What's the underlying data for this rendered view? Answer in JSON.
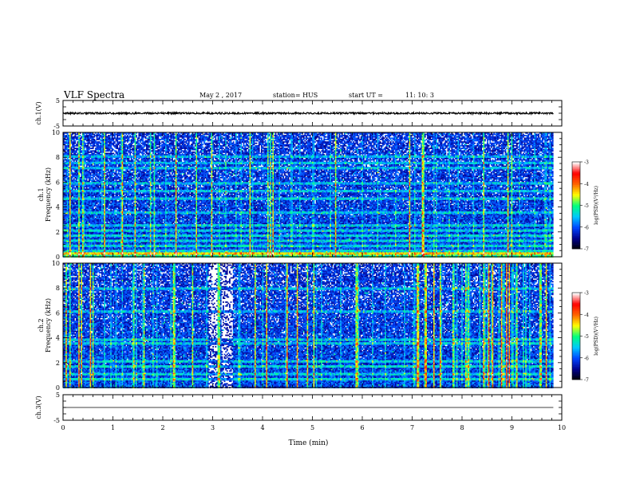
{
  "header": {
    "title": "VLF Spectra",
    "date": "May 2  , 2017",
    "station": "station= HUS",
    "start_label": "start  UT  =",
    "start_time": "11: 10: 3"
  },
  "chart_data": [
    {
      "type": "line",
      "panel": "ch1-waveform",
      "ylabel": "ch.1(V)",
      "ylim": [
        -5,
        5
      ],
      "yticks": [
        "5",
        "-5"
      ],
      "xlim": [
        0,
        9.83
      ],
      "level": 0,
      "amplitude": 0.35
    },
    {
      "type": "heatmap",
      "panel": "ch1-spectrogram",
      "ylabel_channel": "ch.1",
      "ylabel": "Frequency  (kHz)",
      "ylim": [
        0,
        10
      ],
      "yticks": [
        "0",
        "2",
        "4",
        "6",
        "8",
        "10"
      ],
      "xlim": [
        0,
        9.83
      ],
      "persistent_lines_khz": [
        0.4,
        0.6,
        1.0,
        1.4,
        1.8,
        2.2,
        2.6,
        3.6,
        4.8,
        5.4,
        6.0,
        7.2,
        7.6,
        8.2
      ],
      "colorbar": {
        "label": "log(PSD)(V²/Hz)",
        "range": [
          -7,
          -3
        ],
        "ticks": [
          "-3",
          "-4",
          "-5",
          "-6",
          "-7"
        ]
      }
    },
    {
      "type": "heatmap",
      "panel": "ch2-spectrogram",
      "ylabel_channel": "ch.2",
      "ylabel": "Frequency  (kHz)",
      "ylim": [
        0,
        10
      ],
      "yticks": [
        "0",
        "2",
        "4",
        "6",
        "8",
        "10"
      ],
      "xlim": [
        0,
        9.83
      ],
      "persistent_lines_khz": [
        0.8,
        1.2,
        1.8,
        2.2,
        3.6,
        4.0,
        6.2,
        8.0
      ],
      "colorbar": {
        "label": "log(PSD)(V²/Hz)",
        "range": [
          -7,
          -3
        ],
        "ticks": [
          "-3",
          "-4",
          "-5",
          "-6",
          "-7"
        ]
      }
    },
    {
      "type": "line",
      "panel": "ch3-waveform",
      "ylabel": "ch.3(V)",
      "ylim": [
        -5,
        5
      ],
      "yticks": [
        "5",
        "-5"
      ],
      "xlim": [
        0,
        9.83
      ],
      "level": 0,
      "amplitude": 0
    }
  ],
  "xaxis": {
    "label": "Time  (min)",
    "range": [
      0,
      10
    ],
    "ticks": [
      "0",
      "1",
      "2",
      "3",
      "4",
      "5",
      "6",
      "7",
      "8",
      "9",
      "10"
    ]
  },
  "colors": {
    "colormap": [
      "#000000",
      "#00008c",
      "#0044ff",
      "#00c8ff",
      "#00ff7f",
      "#ffff00",
      "#ff6600",
      "#ff0000",
      "#ffffff"
    ]
  }
}
